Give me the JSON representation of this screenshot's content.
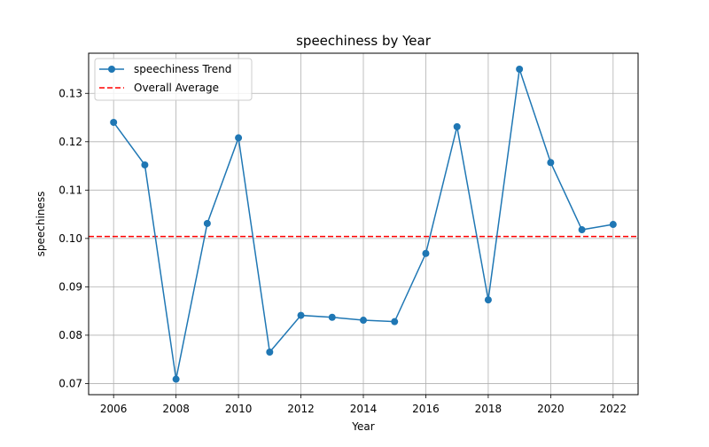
{
  "chart_data": {
    "type": "line",
    "title": "speechiness by Year",
    "xlabel": "Year",
    "ylabel": "speechiness",
    "xlim": [
      2005.2,
      2022.8
    ],
    "ylim": [
      0.0677,
      0.1383
    ],
    "xticks": [
      2006,
      2008,
      2010,
      2012,
      2014,
      2016,
      2018,
      2020,
      2022
    ],
    "yticks": [
      0.07,
      0.08,
      0.09,
      0.1,
      0.11,
      0.12,
      0.13
    ],
    "ytick_labels": [
      "0.07",
      "0.08",
      "0.09",
      "0.10",
      "0.11",
      "0.12",
      "0.13"
    ],
    "grid": true,
    "legend_position": "upper-left",
    "series": [
      {
        "name": "speechiness Trend",
        "color": "#1f77b4",
        "marker": "circle",
        "x": [
          2006,
          2007,
          2008,
          2009,
          2010,
          2011,
          2012,
          2013,
          2014,
          2015,
          2016,
          2017,
          2018,
          2019,
          2020,
          2021,
          2022
        ],
        "values": [
          0.124,
          0.1152,
          0.0709,
          0.1031,
          0.1208,
          0.0765,
          0.0841,
          0.0837,
          0.0831,
          0.0828,
          0.0969,
          0.1231,
          0.0873,
          0.135,
          0.1157,
          0.1018,
          0.1029
        ]
      }
    ],
    "reference_lines": [
      {
        "name": "Overall Average",
        "value": 0.1004,
        "color": "#ff0000",
        "style": "dashed"
      }
    ]
  }
}
